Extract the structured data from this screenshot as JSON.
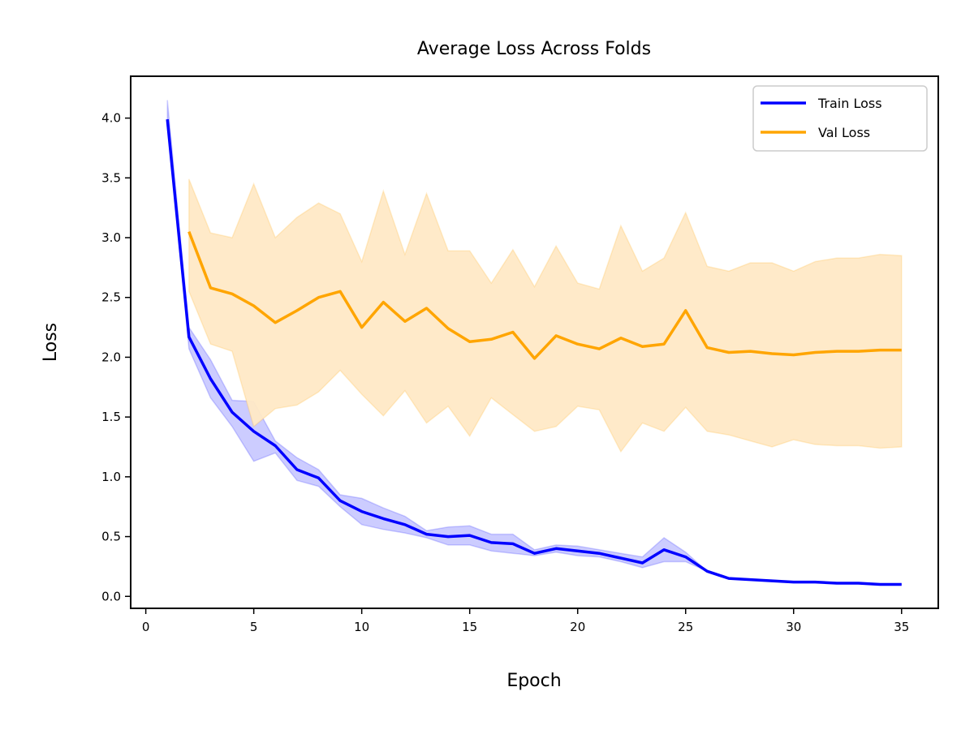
{
  "chart_data": {
    "type": "line",
    "title": "Average Loss Across Folds",
    "xlabel": "Epoch",
    "ylabel": "Loss",
    "xlim": [
      -0.7,
      36.7
    ],
    "ylim": [
      -0.1,
      4.35
    ],
    "xticks": [
      0,
      5,
      10,
      15,
      20,
      25,
      30,
      35
    ],
    "yticks": [
      0.0,
      0.5,
      1.0,
      1.5,
      2.0,
      2.5,
      3.0,
      3.5,
      4.0
    ],
    "xtick_labels": [
      "0",
      "5",
      "10",
      "15",
      "20",
      "25",
      "30",
      "35"
    ],
    "ytick_labels": [
      "0.0",
      "0.5",
      "1.0",
      "1.5",
      "2.0",
      "2.5",
      "3.0",
      "3.5",
      "4.0"
    ],
    "grid": false,
    "legend_position": "top-right",
    "series": [
      {
        "name": "Train Loss",
        "color": "#0000ff",
        "x": [
          1,
          2,
          3,
          4,
          5,
          6,
          7,
          8,
          9,
          10,
          11,
          12,
          13,
          14,
          15,
          16,
          17,
          18,
          19,
          20,
          21,
          22,
          23,
          24,
          25,
          26,
          27,
          28,
          29,
          30,
          31,
          32,
          33,
          34,
          35
        ],
        "values": [
          3.99,
          2.17,
          1.82,
          1.54,
          1.38,
          1.26,
          1.06,
          0.99,
          0.8,
          0.71,
          0.65,
          0.6,
          0.52,
          0.5,
          0.51,
          0.45,
          0.44,
          0.36,
          0.4,
          0.38,
          0.36,
          0.32,
          0.28,
          0.39,
          0.33,
          0.21,
          0.15,
          0.14,
          0.13,
          0.12,
          0.12,
          0.11,
          0.11,
          0.1,
          0.1
        ],
        "band_upper": [
          4.15,
          2.25,
          1.98,
          1.64,
          1.63,
          1.3,
          1.16,
          1.06,
          0.85,
          0.82,
          0.74,
          0.67,
          0.55,
          0.58,
          0.59,
          0.52,
          0.52,
          0.39,
          0.43,
          0.42,
          0.39,
          0.36,
          0.33,
          0.49,
          0.37,
          0.21,
          0.15,
          0.14,
          0.13,
          0.12,
          0.12,
          0.11,
          0.11,
          0.1,
          0.1
        ],
        "band_lower": [
          3.99,
          2.07,
          1.66,
          1.42,
          1.13,
          1.2,
          0.97,
          0.92,
          0.75,
          0.6,
          0.56,
          0.53,
          0.49,
          0.43,
          0.43,
          0.38,
          0.36,
          0.34,
          0.37,
          0.34,
          0.33,
          0.29,
          0.24,
          0.29,
          0.29,
          0.21,
          0.15,
          0.14,
          0.13,
          0.12,
          0.12,
          0.11,
          0.11,
          0.1,
          0.1
        ]
      },
      {
        "name": "Val Loss",
        "color": "#ffa500",
        "band_color": "#ffe9c6",
        "x": [
          2,
          3,
          4,
          5,
          6,
          7,
          8,
          9,
          10,
          11,
          12,
          13,
          14,
          15,
          16,
          17,
          18,
          19,
          20,
          21,
          22,
          23,
          24,
          25,
          26,
          27,
          28,
          29,
          30,
          31,
          32,
          33,
          34,
          35
        ],
        "values": [
          3.05,
          2.58,
          2.53,
          2.43,
          2.29,
          2.39,
          2.5,
          2.55,
          2.25,
          2.46,
          2.3,
          2.41,
          2.24,
          2.13,
          2.15,
          2.21,
          1.99,
          2.18,
          2.11,
          2.07,
          2.16,
          2.09,
          2.11,
          2.39,
          2.08,
          2.04,
          2.05,
          2.03,
          2.02,
          2.04,
          2.05,
          2.05,
          2.06,
          2.06
        ],
        "band_upper": [
          3.49,
          3.04,
          3.0,
          3.45,
          3.0,
          3.17,
          3.29,
          3.2,
          2.8,
          3.39,
          2.86,
          3.37,
          2.89,
          2.89,
          2.62,
          2.9,
          2.59,
          2.93,
          2.62,
          2.57,
          3.1,
          2.72,
          2.83,
          3.21,
          2.76,
          2.72,
          2.79,
          2.79,
          2.72,
          2.8,
          2.83,
          2.83,
          2.86,
          2.85
        ],
        "band_lower": [
          2.55,
          2.11,
          2.05,
          1.42,
          1.57,
          1.6,
          1.71,
          1.89,
          1.69,
          1.51,
          1.72,
          1.45,
          1.59,
          1.34,
          1.66,
          1.52,
          1.38,
          1.42,
          1.59,
          1.56,
          1.21,
          1.45,
          1.38,
          1.58,
          1.38,
          1.35,
          1.3,
          1.25,
          1.31,
          1.27,
          1.26,
          1.26,
          1.24,
          1.25
        ]
      }
    ]
  }
}
